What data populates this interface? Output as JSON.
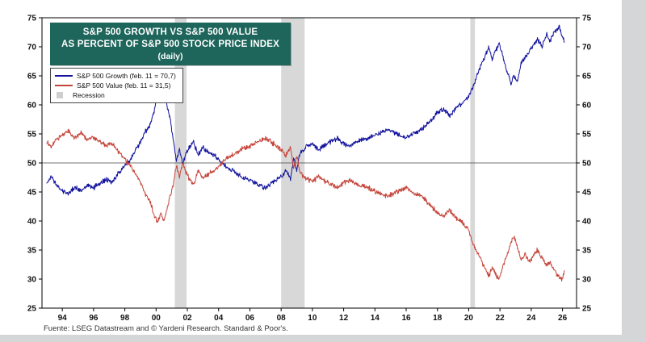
{
  "title": {
    "line1": "S&P 500 GROWTH VS S&P 500 VALUE",
    "line2": "AS PERCENT OF S&P 500 STOCK PRICE INDEX",
    "line3": "(daily)",
    "bg": "#1e655b",
    "fg": "#ffffff"
  },
  "legend": {
    "items": [
      {
        "label": "S&P 500 Growth (feb. 11 = 70,7)",
        "type": "line",
        "color": "#12129e"
      },
      {
        "label": "S&P 500 Value (feb. 11 = 31,5)",
        "type": "line",
        "color": "#c5443a"
      },
      {
        "label": "Recession",
        "type": "band",
        "color": "#cfcfcf"
      }
    ]
  },
  "footer": {
    "source": "Fuente: LSEG Datastream and © Yardeni Research. Standard & Poor's."
  },
  "chart_data": {
    "type": "line",
    "title": "S&P 500 Growth vs S&P 500 Value as percent of S&P 500 Stock Price Index (daily)",
    "xlabel": "",
    "ylabel": "",
    "grid": false,
    "legend_position": "top-left",
    "recession_color": "#d8d8d8",
    "recessions": [
      [
        2001.2,
        2001.95
      ],
      [
        2008.0,
        2009.5
      ],
      [
        2020.1,
        2020.4
      ]
    ],
    "x_axis": {
      "min": 1992.7,
      "max": 2026.9,
      "tick_years": [
        1994,
        1996,
        1998,
        2000,
        2002,
        2004,
        2006,
        2008,
        2010,
        2012,
        2014,
        2016,
        2018,
        2020,
        2022,
        2024,
        2026
      ],
      "tick_labels": [
        "94",
        "96",
        "98",
        "00",
        "02",
        "04",
        "06",
        "08",
        "10",
        "12",
        "14",
        "16",
        "18",
        "20",
        "22",
        "24",
        "26"
      ]
    },
    "y_axis": {
      "min": 25,
      "max": 75,
      "ticks": [
        25,
        30,
        35,
        40,
        45,
        50,
        55,
        60,
        65,
        70,
        75
      ],
      "reference_line": 50
    },
    "series": [
      {
        "name": "S&P 500 Growth",
        "latest_label": "feb. 11 = 70,7",
        "latest_value": 70.7,
        "color": "#12129e",
        "data_name": "sp500-growth-line",
        "points": [
          [
            1993.0,
            46.5
          ],
          [
            1993.3,
            47.6
          ],
          [
            1993.6,
            46.2
          ],
          [
            1994.0,
            45.2
          ],
          [
            1994.4,
            44.8
          ],
          [
            1994.8,
            45.9
          ],
          [
            1995.2,
            45.1
          ],
          [
            1995.6,
            46.2
          ],
          [
            1996.0,
            45.7
          ],
          [
            1996.4,
            46.6
          ],
          [
            1996.8,
            47.1
          ],
          [
            1997.2,
            46.7
          ],
          [
            1997.6,
            48.3
          ],
          [
            1998.0,
            49.4
          ],
          [
            1998.4,
            50.8
          ],
          [
            1998.7,
            52.2
          ],
          [
            1999.0,
            53.4
          ],
          [
            1999.3,
            55.3
          ],
          [
            1999.6,
            56.4
          ],
          [
            1999.9,
            59.2
          ],
          [
            2000.1,
            62.4
          ],
          [
            2000.3,
            60.6
          ],
          [
            2000.5,
            62.0
          ],
          [
            2000.7,
            59.8
          ],
          [
            2000.9,
            57.6
          ],
          [
            2001.1,
            53.8
          ],
          [
            2001.3,
            50.4
          ],
          [
            2001.5,
            52.6
          ],
          [
            2001.7,
            49.7
          ],
          [
            2001.9,
            51.6
          ],
          [
            2002.1,
            52.6
          ],
          [
            2002.4,
            53.6
          ],
          [
            2002.7,
            51.4
          ],
          [
            2003.0,
            52.6
          ],
          [
            2003.4,
            51.8
          ],
          [
            2003.8,
            51.2
          ],
          [
            2004.2,
            50.0
          ],
          [
            2004.6,
            49.1
          ],
          [
            2005.0,
            48.5
          ],
          [
            2005.5,
            47.5
          ],
          [
            2006.0,
            47.1
          ],
          [
            2006.5,
            46.3
          ],
          [
            2007.0,
            45.7
          ],
          [
            2007.5,
            46.7
          ],
          [
            2008.0,
            47.7
          ],
          [
            2008.3,
            48.7
          ],
          [
            2008.6,
            47.3
          ],
          [
            2008.8,
            50.9
          ],
          [
            2009.0,
            48.7
          ],
          [
            2009.2,
            51.7
          ],
          [
            2009.6,
            52.7
          ],
          [
            2010.0,
            53.3
          ],
          [
            2010.4,
            52.3
          ],
          [
            2010.8,
            53.1
          ],
          [
            2011.2,
            53.7
          ],
          [
            2011.6,
            54.3
          ],
          [
            2012.0,
            53.3
          ],
          [
            2012.4,
            52.9
          ],
          [
            2012.8,
            53.7
          ],
          [
            2013.2,
            53.9
          ],
          [
            2013.6,
            54.3
          ],
          [
            2014.0,
            54.9
          ],
          [
            2014.4,
            55.3
          ],
          [
            2014.8,
            55.7
          ],
          [
            2015.2,
            55.3
          ],
          [
            2015.6,
            54.7
          ],
          [
            2016.0,
            54.3
          ],
          [
            2016.4,
            55.1
          ],
          [
            2016.8,
            55.5
          ],
          [
            2017.2,
            56.3
          ],
          [
            2017.6,
            57.3
          ],
          [
            2018.0,
            58.7
          ],
          [
            2018.4,
            59.3
          ],
          [
            2018.8,
            58.1
          ],
          [
            2019.2,
            59.5
          ],
          [
            2019.6,
            60.3
          ],
          [
            2020.0,
            61.5
          ],
          [
            2020.3,
            63.2
          ],
          [
            2020.6,
            65.6
          ],
          [
            2020.9,
            67.4
          ],
          [
            2021.1,
            68.8
          ],
          [
            2021.3,
            69.9
          ],
          [
            2021.5,
            67.9
          ],
          [
            2021.7,
            69.1
          ],
          [
            2021.95,
            70.6
          ],
          [
            2022.1,
            69.2
          ],
          [
            2022.4,
            66.3
          ],
          [
            2022.7,
            63.6
          ],
          [
            2022.9,
            65.1
          ],
          [
            2023.1,
            63.9
          ],
          [
            2023.35,
            67.1
          ],
          [
            2023.6,
            68.1
          ],
          [
            2023.9,
            69.3
          ],
          [
            2024.1,
            70.1
          ],
          [
            2024.4,
            71.3
          ],
          [
            2024.7,
            70.1
          ],
          [
            2025.0,
            72.1
          ],
          [
            2025.2,
            70.9
          ],
          [
            2025.5,
            72.6
          ],
          [
            2025.8,
            73.6
          ],
          [
            2026.0,
            71.6
          ],
          [
            2026.12,
            70.7
          ]
        ]
      },
      {
        "name": "S&P 500 Value",
        "latest_label": "feb. 11 = 31,5",
        "latest_value": 31.5,
        "color": "#c5443a",
        "data_name": "sp500-value-line",
        "points": [
          [
            1993.0,
            53.6
          ],
          [
            1993.3,
            52.7
          ],
          [
            1993.6,
            54.0
          ],
          [
            1994.0,
            54.8
          ],
          [
            1994.4,
            55.5
          ],
          [
            1994.8,
            54.3
          ],
          [
            1995.2,
            55.1
          ],
          [
            1995.6,
            54.0
          ],
          [
            1996.0,
            54.5
          ],
          [
            1996.4,
            53.6
          ],
          [
            1996.8,
            53.0
          ],
          [
            1997.2,
            53.4
          ],
          [
            1997.6,
            51.9
          ],
          [
            1998.0,
            50.7
          ],
          [
            1998.4,
            49.3
          ],
          [
            1998.7,
            47.9
          ],
          [
            1999.0,
            46.7
          ],
          [
            1999.3,
            44.7
          ],
          [
            1999.6,
            43.6
          ],
          [
            1999.9,
            40.9
          ],
          [
            2000.1,
            39.7
          ],
          [
            2000.3,
            41.4
          ],
          [
            2000.5,
            40.0
          ],
          [
            2000.7,
            42.2
          ],
          [
            2000.9,
            44.3
          ],
          [
            2001.1,
            46.2
          ],
          [
            2001.3,
            49.6
          ],
          [
            2001.5,
            47.4
          ],
          [
            2001.7,
            50.3
          ],
          [
            2001.9,
            48.4
          ],
          [
            2002.1,
            47.4
          ],
          [
            2002.4,
            46.4
          ],
          [
            2002.7,
            48.6
          ],
          [
            2003.0,
            47.4
          ],
          [
            2003.4,
            48.2
          ],
          [
            2003.8,
            48.8
          ],
          [
            2004.2,
            50.0
          ],
          [
            2004.6,
            50.9
          ],
          [
            2005.0,
            51.5
          ],
          [
            2005.5,
            52.5
          ],
          [
            2006.0,
            52.9
          ],
          [
            2006.5,
            53.7
          ],
          [
            2007.0,
            54.3
          ],
          [
            2007.5,
            53.3
          ],
          [
            2008.0,
            52.3
          ],
          [
            2008.3,
            51.3
          ],
          [
            2008.6,
            52.7
          ],
          [
            2008.8,
            49.1
          ],
          [
            2009.0,
            51.3
          ],
          [
            2009.2,
            48.3
          ],
          [
            2009.6,
            47.3
          ],
          [
            2010.0,
            46.7
          ],
          [
            2010.4,
            47.7
          ],
          [
            2010.8,
            46.9
          ],
          [
            2011.2,
            46.3
          ],
          [
            2011.6,
            45.7
          ],
          [
            2012.0,
            46.7
          ],
          [
            2012.4,
            47.1
          ],
          [
            2012.8,
            46.3
          ],
          [
            2013.2,
            46.1
          ],
          [
            2013.6,
            45.7
          ],
          [
            2014.0,
            45.1
          ],
          [
            2014.4,
            44.7
          ],
          [
            2014.8,
            44.3
          ],
          [
            2015.2,
            44.7
          ],
          [
            2015.6,
            45.3
          ],
          [
            2016.0,
            45.7
          ],
          [
            2016.4,
            44.9
          ],
          [
            2016.8,
            44.5
          ],
          [
            2017.2,
            43.7
          ],
          [
            2017.6,
            42.7
          ],
          [
            2018.0,
            41.3
          ],
          [
            2018.4,
            40.7
          ],
          [
            2018.8,
            41.9
          ],
          [
            2019.2,
            40.5
          ],
          [
            2019.6,
            39.7
          ],
          [
            2020.0,
            38.5
          ],
          [
            2020.3,
            35.8
          ],
          [
            2020.6,
            34.4
          ],
          [
            2020.9,
            32.6
          ],
          [
            2021.1,
            31.6
          ],
          [
            2021.3,
            30.4
          ],
          [
            2021.5,
            32.1
          ],
          [
            2021.7,
            30.9
          ],
          [
            2021.95,
            29.9
          ],
          [
            2022.1,
            31.4
          ],
          [
            2022.4,
            33.7
          ],
          [
            2022.7,
            36.4
          ],
          [
            2022.9,
            37.3
          ],
          [
            2023.1,
            35.6
          ],
          [
            2023.35,
            33.4
          ],
          [
            2023.6,
            34.3
          ],
          [
            2023.9,
            32.9
          ],
          [
            2024.1,
            33.9
          ],
          [
            2024.4,
            35.1
          ],
          [
            2024.7,
            33.7
          ],
          [
            2025.0,
            32.4
          ],
          [
            2025.2,
            32.9
          ],
          [
            2025.5,
            31.4
          ],
          [
            2025.8,
            30.3
          ],
          [
            2026.0,
            29.9
          ],
          [
            2026.12,
            31.5
          ]
        ]
      }
    ]
  }
}
